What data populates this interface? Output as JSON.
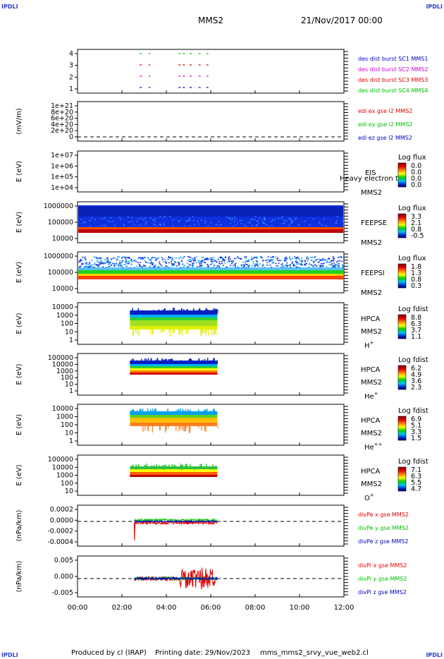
{
  "corner_label": "IPDLI",
  "header": {
    "title": "MMS2",
    "date": "21/Nov/2017 00:00"
  },
  "footer": {
    "produced_by": "Produced by cl (IRAP)",
    "printing_date": "Printing date: 29/Nov/2023",
    "product": "mms_mms2_srvy_vue_web2.cl"
  },
  "x_axis": {
    "ticks": [
      "00:00",
      "02:00",
      "04:00",
      "06:00",
      "08:00",
      "10:00",
      "12:00"
    ],
    "range_hours": [
      0,
      12
    ]
  },
  "colors": {
    "red": "#e00000",
    "magenta": "#d000d0",
    "green": "#00c000",
    "blue": "#0000c0",
    "spec_blue": "#1030e0"
  },
  "colorbar_gradient": [
    "#8b0000",
    "#e00000",
    "#ff8000",
    "#ffff00",
    "#00d000",
    "#00c0ff",
    "#0020c0",
    "#000080"
  ],
  "chart_data": [
    {
      "type": "line",
      "name": "burst",
      "ylim": [
        0.5,
        4.5
      ],
      "yticks": [
        "4",
        "3",
        "2",
        "1"
      ],
      "legend": [
        {
          "text": "des dist burst SC1 MMS1",
          "color": "#0000c0"
        },
        {
          "text": "des dist burst SC2 MMS2",
          "color": "#d000d0"
        },
        {
          "text": "des dist burst SC3 MMS3",
          "color": "#e00000"
        },
        {
          "text": "des dist burst SC4 MMS4",
          "color": "#00c000"
        }
      ],
      "series": [
        {
          "level": 4,
          "color": "#00c000",
          "intervals_hours": [
            [
              2.8,
              2.95
            ],
            [
              3.2,
              3.28
            ],
            [
              4.55,
              4.9
            ],
            [
              5.05,
              5.25
            ],
            [
              5.45,
              5.6
            ],
            [
              5.8,
              5.95
            ]
          ]
        },
        {
          "level": 3,
          "color": "#e00000",
          "intervals_hours": [
            [
              2.8,
              2.95
            ],
            [
              3.2,
              3.28
            ],
            [
              4.55,
              4.9
            ],
            [
              5.05,
              5.25
            ],
            [
              5.45,
              5.6
            ],
            [
              5.8,
              5.95
            ]
          ]
        },
        {
          "level": 2,
          "color": "#d000d0",
          "intervals_hours": [
            [
              2.8,
              2.95
            ],
            [
              3.2,
              3.28
            ],
            [
              4.55,
              4.9
            ],
            [
              5.05,
              5.25
            ],
            [
              5.45,
              5.6
            ],
            [
              5.8,
              5.95
            ]
          ]
        },
        {
          "level": 1,
          "color": "#0000c0",
          "intervals_hours": [
            [
              2.8,
              2.95
            ],
            [
              3.2,
              3.28
            ],
            [
              4.55,
              4.9
            ],
            [
              5.05,
              5.25
            ],
            [
              5.45,
              5.6
            ],
            [
              5.8,
              5.95
            ]
          ]
        }
      ]
    },
    {
      "type": "line",
      "name": "edi",
      "ylabel": "(mV/m)",
      "yticks": [
        "1e+21",
        "8e+20",
        "6e+20",
        "4e+20",
        "2e+20",
        "0"
      ],
      "legend": [
        {
          "text": "edi ex gse l2 MMS2",
          "color": "#e00000"
        },
        {
          "text": "edi ey gse l2 MMS2",
          "color": "#00c000"
        },
        {
          "text": "edi ez gse l2 MMS2",
          "color": "#0000c0"
        }
      ]
    },
    {
      "type": "heatmap",
      "name": "eis",
      "ylabel": "E (eV)",
      "yticks": [
        "1e+07",
        "1e+06",
        "1e+05",
        "1e+04"
      ],
      "label": "EIS",
      "label2": "MMS2",
      "overlay_text": "Heavy electron tof",
      "cbar_title": "Log flux",
      "cbar_ticks": [
        "0.0",
        "0.0",
        "0.0",
        "0.0"
      ],
      "ylim_eV": [
        10000,
        10000000
      ]
    },
    {
      "type": "heatmap",
      "name": "feepse",
      "ylabel": "E (eV)",
      "yticks": [
        "1000000",
        "100000",
        "10000"
      ],
      "label": "FEEPSE",
      "label2": "MMS2",
      "cbar_title": "Log flux",
      "cbar_ticks": [
        "3.3",
        "2.1",
        "0.8",
        "-0.5"
      ],
      "time_range_hours": [
        0,
        12
      ],
      "ylim_eV": [
        10000,
        1000000
      ]
    },
    {
      "type": "heatmap",
      "name": "feepsi",
      "ylabel": "E (eV)",
      "yticks": [
        "1000000",
        "100000",
        "10000"
      ],
      "label": "FEEPSI",
      "label2": "MMS2",
      "cbar_title": "Log flux",
      "cbar_ticks": [
        "1.8",
        "1.3",
        "0.8",
        "0.3"
      ],
      "time_range_hours": [
        0,
        12
      ],
      "ylim_eV": [
        10000,
        1000000
      ]
    },
    {
      "type": "heatmap",
      "name": "hpca-h",
      "ylabel": "E (eV)",
      "yticks": [
        "10000",
        "1000",
        "100",
        "10",
        "1"
      ],
      "label": "HPCA",
      "label2": "MMS2",
      "species": "H",
      "species_sup": "+",
      "cbar_title": "Log fdist",
      "cbar_ticks": [
        "8.8",
        "6.3",
        "3.7",
        "1.1"
      ],
      "time_range_hours": [
        2.2,
        6.3
      ],
      "ylim_eV": [
        1,
        100000
      ]
    },
    {
      "type": "heatmap",
      "name": "hpca-he",
      "ylabel": "E (eV)",
      "yticks": [
        "100000",
        "10000",
        "1000",
        "100",
        "10",
        "1"
      ],
      "label": "HPCA",
      "label2": "MMS2",
      "species": "He",
      "species_sup": "+",
      "cbar_title": "Log fdist",
      "cbar_ticks": [
        "6.2",
        "4.9",
        "3.6",
        "2.3"
      ],
      "time_range_hours": [
        2.2,
        6.3
      ],
      "ylim_eV": [
        1,
        100000
      ]
    },
    {
      "type": "heatmap",
      "name": "hpca-he2",
      "ylabel": "E (eV)",
      "yticks": [
        "10000",
        "1000",
        "100",
        "10",
        "1"
      ],
      "label": "HPCA",
      "label2": "MMS2",
      "species": "He",
      "species_sup": "++",
      "cbar_title": "Log fdist",
      "cbar_ticks": [
        "6.9",
        "5.1",
        "3.3",
        "1.5"
      ],
      "time_range_hours": [
        2.2,
        6.3
      ],
      "ylim_eV": [
        1,
        100000
      ]
    },
    {
      "type": "heatmap",
      "name": "hpca-o",
      "ylabel": "E (eV)",
      "yticks": [
        "100000",
        "10000",
        "1000",
        "100",
        "10"
      ],
      "label": "HPCA",
      "label2": "MMS2",
      "species": "O",
      "species_sup": "+",
      "cbar_title": "Log fdist",
      "cbar_ticks": [
        "7.1",
        "6.3",
        "5.5",
        "4.7"
      ],
      "time_range_hours": [
        2.2,
        6.3
      ],
      "ylim_eV": [
        1,
        100000
      ]
    },
    {
      "type": "line",
      "name": "divpe",
      "ylabel": "(nPa/km)",
      "yticks": [
        "0.0002",
        "0.0000",
        "-0.0002",
        "-0.0004"
      ],
      "ylim": [
        -0.0005,
        0.0003
      ],
      "legend": [
        {
          "text": "divPe x gse MMS2",
          "color": "#e00000"
        },
        {
          "text": "divPe y gse MMS2",
          "color": "#00c000"
        },
        {
          "text": "divPe z gse MMS2",
          "color": "#0000c0"
        }
      ],
      "time_range_hours": [
        2.55,
        6.3
      ]
    },
    {
      "type": "line",
      "name": "divpi",
      "ylabel": "(nPa/km)",
      "yticks": [
        "0.005",
        "0.000",
        "-0.005"
      ],
      "ylim": [
        -0.008,
        0.008
      ],
      "legend": [
        {
          "text": "divPi x gse MMS2",
          "color": "#e00000"
        },
        {
          "text": "divPi y gse MMS2",
          "color": "#00c000"
        },
        {
          "text": "divPi z gse MMS2",
          "color": "#0000c0"
        }
      ],
      "time_range_hours": [
        2.55,
        6.3
      ]
    }
  ]
}
